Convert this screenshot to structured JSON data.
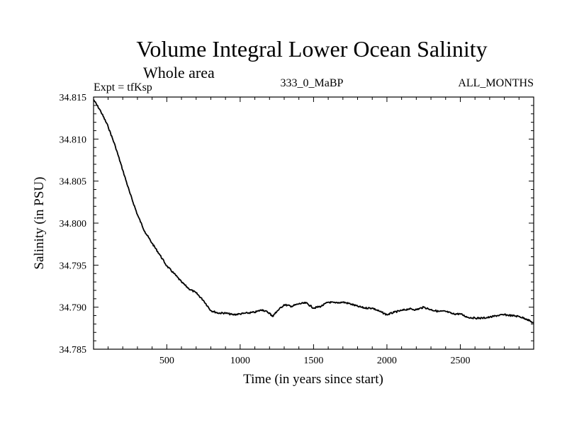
{
  "chart_data": {
    "type": "line",
    "title": "Volume Integral Lower Ocean Salinity",
    "subtitle": "Whole area",
    "experiment": "Expt = tfKsp",
    "run_label": "333_0_MaBP",
    "period": "ALL_MONTHS",
    "xlabel": "Time (in years since start)",
    "ylabel": "Salinity (in PSU)",
    "xlim": [
      1,
      3000
    ],
    "ylim": [
      34.785,
      34.815
    ],
    "x_ticks": [
      500,
      1000,
      1500,
      2000,
      2500
    ],
    "y_ticks": [
      "34.785",
      "34.790",
      "34.795",
      "34.800",
      "34.805",
      "34.810",
      "34.815"
    ],
    "grid": false,
    "series": [
      {
        "name": "Salinity",
        "color": "#000000",
        "x": [
          1,
          50,
          100,
          150,
          200,
          250,
          300,
          350,
          400,
          450,
          500,
          550,
          600,
          650,
          700,
          750,
          800,
          850,
          900,
          950,
          1000,
          1050,
          1100,
          1150,
          1200,
          1220,
          1250,
          1300,
          1350,
          1400,
          1450,
          1500,
          1550,
          1600,
          1650,
          1700,
          1750,
          1800,
          1850,
          1900,
          1950,
          2000,
          2050,
          2100,
          2150,
          2200,
          2250,
          2300,
          2350,
          2400,
          2450,
          2500,
          2550,
          2600,
          2650,
          2700,
          2750,
          2800,
          2850,
          2900,
          2950,
          3000
        ],
        "values": [
          34.8147,
          34.8133,
          34.8115,
          34.8091,
          34.8063,
          34.8035,
          34.801,
          34.799,
          34.7976,
          34.7963,
          34.7949,
          34.794,
          34.793,
          34.7922,
          34.7917,
          34.7908,
          34.7896,
          34.7893,
          34.7893,
          34.7891,
          34.7892,
          34.7893,
          34.7894,
          34.7897,
          34.7893,
          34.7889,
          34.7895,
          34.7903,
          34.7901,
          34.7904,
          34.7905,
          34.7899,
          34.7901,
          34.7906,
          34.7905,
          34.7906,
          34.7904,
          34.7901,
          34.7899,
          34.7899,
          34.7895,
          34.7891,
          34.7894,
          34.7896,
          34.7898,
          34.7897,
          34.79,
          34.7897,
          34.7895,
          34.7895,
          34.7892,
          34.7892,
          34.7888,
          34.7887,
          34.7887,
          34.7888,
          34.789,
          34.7891,
          34.789,
          34.7889,
          34.7886,
          34.7881
        ]
      }
    ]
  }
}
